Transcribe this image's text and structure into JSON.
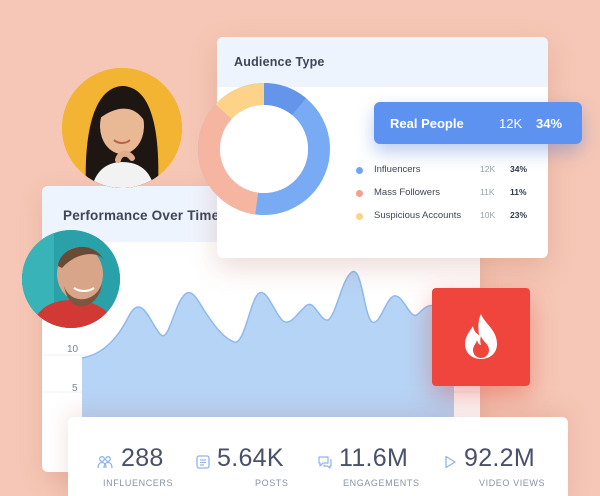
{
  "performance": {
    "title": "Performance Over Time",
    "y_ticks": [
      "10",
      "5"
    ],
    "accent": "#a8cbf5"
  },
  "audience": {
    "title": "Audience Type",
    "donut_colors": {
      "real_people": "#6fa5f3",
      "influencers": "#6495ea",
      "mass_followers": "#f6b5a0",
      "suspicious": "#fdd38a"
    },
    "highlight": {
      "label": "Real People",
      "count": "12K",
      "percent": "34%"
    },
    "legend": [
      {
        "label": "Influencers",
        "count": "12K",
        "percent": "34%",
        "color": "#6fa5f3"
      },
      {
        "label": "Mass Followers",
        "count": "11K",
        "percent": "11%",
        "color": "#f6a08c"
      },
      {
        "label": "Suspicious Accounts",
        "count": "10K",
        "percent": "23%",
        "color": "#fdd38a"
      }
    ]
  },
  "badge": {
    "icon": "fire-icon",
    "color": "#f0453c"
  },
  "stats": [
    {
      "icon": "people-icon",
      "value": "288",
      "label": "INFLUENCERS"
    },
    {
      "icon": "document-icon",
      "value": "5.64K",
      "label": "POSTS"
    },
    {
      "icon": "chat-icon",
      "value": "11.6M",
      "label": "ENGAGEMENTS"
    },
    {
      "icon": "play-icon",
      "value": "92.2M",
      "label": "VIDEO VIEWS"
    }
  ]
}
